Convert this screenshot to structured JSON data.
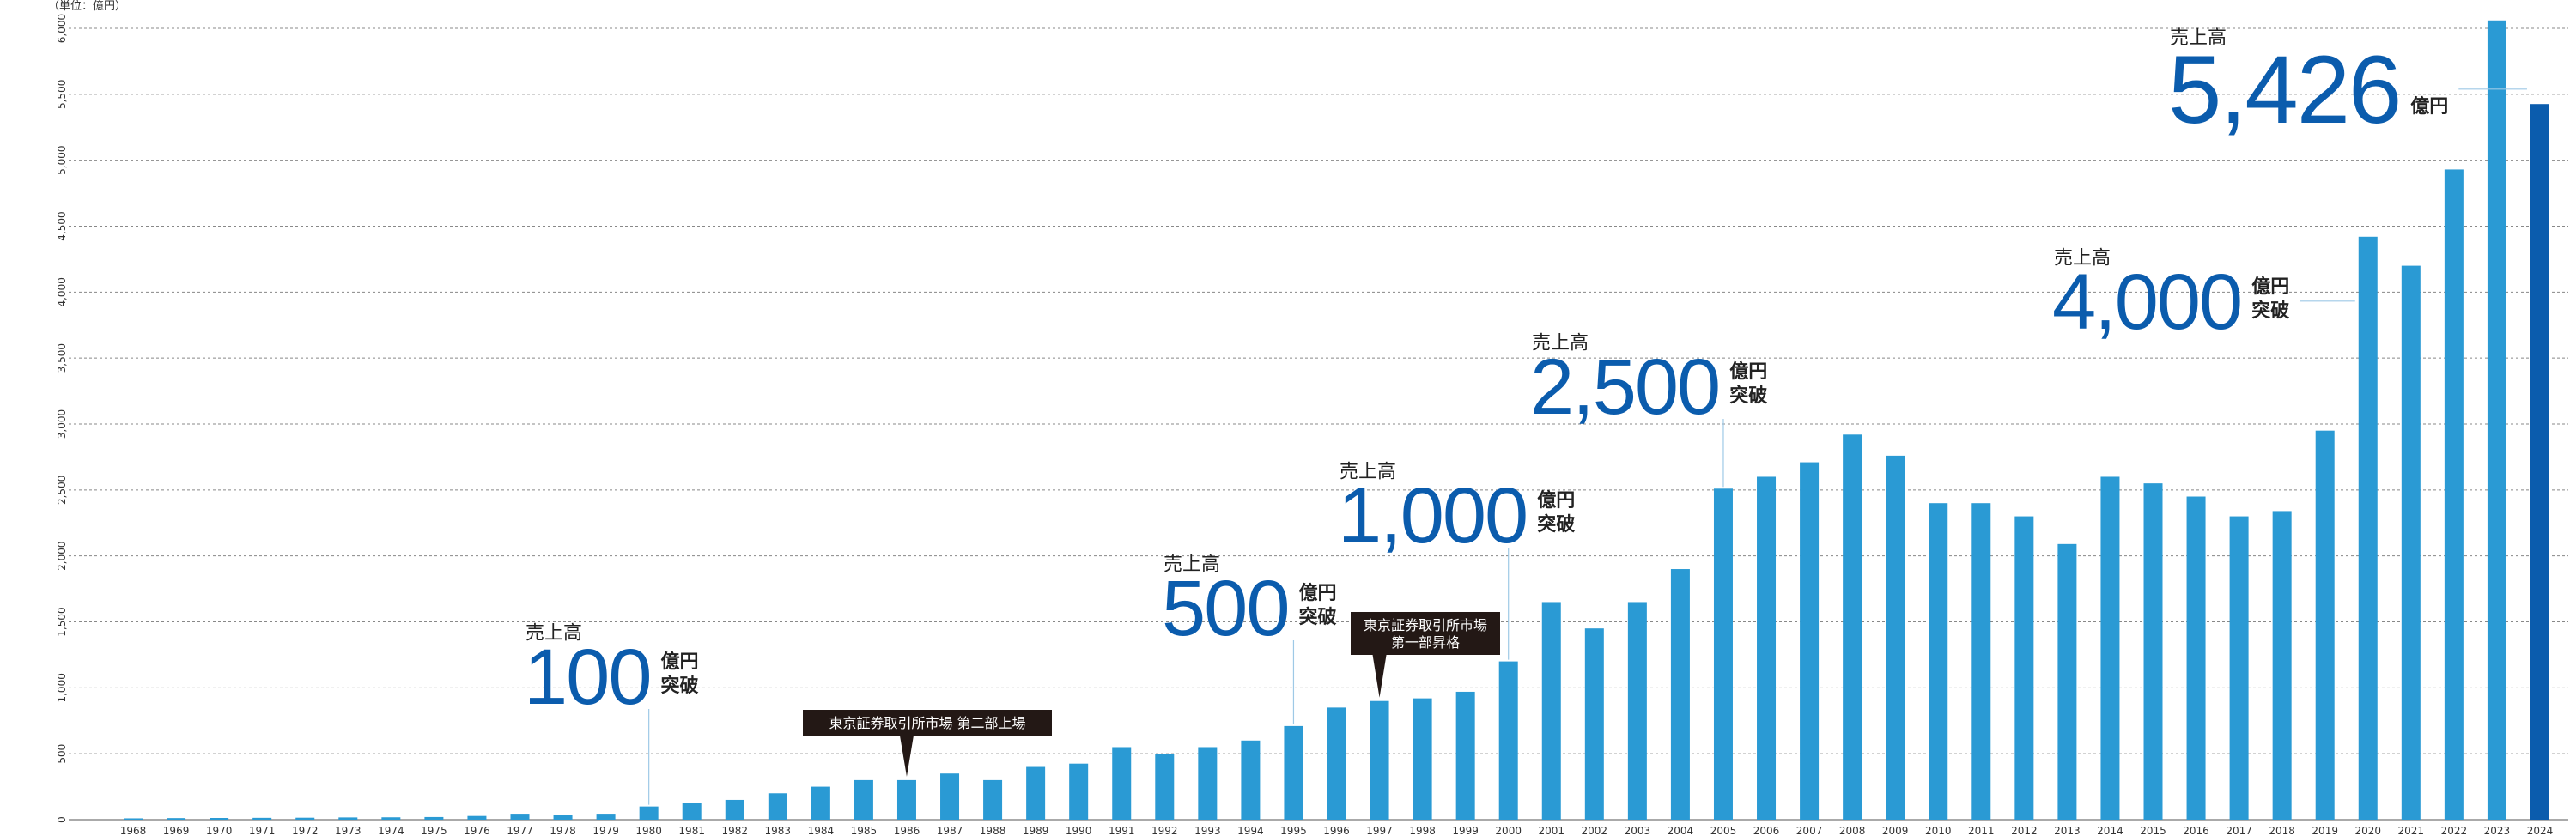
{
  "chart_data": {
    "type": "bar",
    "unit_label": "（単位：億円）",
    "ylim": [
      0,
      6000
    ],
    "yticks": [
      0,
      500,
      1000,
      1500,
      2000,
      2500,
      3000,
      3500,
      4000,
      4500,
      5000,
      5500,
      6000
    ],
    "ytick_labels": [
      "0",
      "500",
      "1,000",
      "1,500",
      "2,000",
      "2,500",
      "3,000",
      "3,500",
      "4,000",
      "4,500",
      "5,000",
      "5,500",
      "6,000"
    ],
    "grid": true,
    "categories": [
      "1968",
      "1969",
      "1970",
      "1971",
      "1972",
      "1973",
      "1974",
      "1975",
      "1976",
      "1977",
      "1978",
      "1979",
      "1980",
      "1981",
      "1982",
      "1983",
      "1984",
      "1985",
      "1986",
      "1987",
      "1988",
      "1989",
      "1990",
      "1991",
      "1992",
      "1993",
      "1994",
      "1995",
      "1996",
      "1997",
      "1998",
      "1999",
      "2000",
      "2001",
      "2002",
      "2003",
      "2004",
      "2005",
      "2006",
      "2007",
      "2008",
      "2009",
      "2010",
      "2011",
      "2012",
      "2013",
      "2014",
      "2015",
      "2016",
      "2017",
      "2018",
      "2019",
      "2020",
      "2021",
      "2022",
      "2023",
      "2024"
    ],
    "values": [
      10,
      12,
      13,
      14,
      15,
      17,
      18,
      20,
      28,
      45,
      35,
      45,
      100,
      125,
      150,
      200,
      250,
      300,
      300,
      350,
      300,
      400,
      425,
      550,
      500,
      550,
      600,
      710,
      850,
      900,
      920,
      970,
      1200,
      1650,
      1450,
      1650,
      1900,
      2510,
      2600,
      2710,
      2920,
      2760,
      2400,
      2400,
      2300,
      2090,
      2600,
      2550,
      2450,
      2300,
      2340,
      2950,
      4420,
      4200,
      4930,
      6060,
      5426
    ],
    "series_colors": {
      "default": "#2a9ad4",
      "highlight": "#0b5cad"
    },
    "highlight_category": "2024",
    "annotations": [
      {
        "category": "1980",
        "pre": "売上高",
        "num": "100",
        "suffix1": "億円",
        "suffix2": "突破"
      },
      {
        "category": "1995",
        "pre": "売上高",
        "num": "500",
        "suffix1": "億円",
        "suffix2": "突破"
      },
      {
        "category": "2000",
        "pre": "売上高",
        "num": "1,000",
        "suffix1": "億円",
        "suffix2": "突破"
      },
      {
        "category": "2005",
        "pre": "売上高",
        "num": "2,500",
        "suffix1": "億円",
        "suffix2": "突破"
      },
      {
        "category": "2020",
        "pre": "売上高",
        "num": "4,000",
        "suffix1": "億円",
        "suffix2": "突破"
      },
      {
        "category": "2024",
        "pre": "売上高",
        "num": "5,426",
        "suffix1": "億円",
        "suffix2": ""
      }
    ],
    "events": [
      {
        "category": "1986",
        "lines": [
          "東京証券取引所市場 第二部上場"
        ]
      },
      {
        "category": "1997",
        "lines": [
          "東京証券取引所市場",
          "第一部昇格"
        ]
      }
    ]
  }
}
